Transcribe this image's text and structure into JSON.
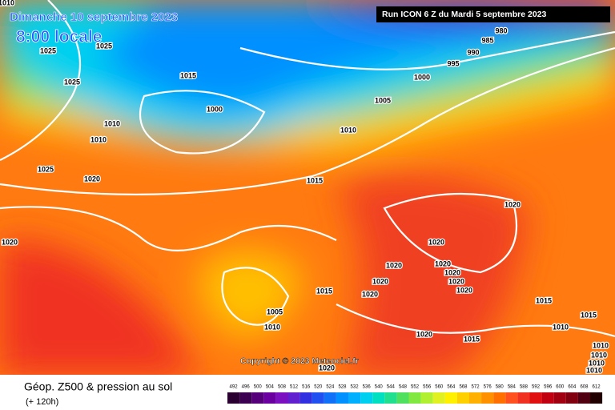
{
  "header": {
    "date": "Dimanche 10 septembre 2023",
    "time": "8:00 locale",
    "run": "Run ICON 6 Z du Mardi 5 septembre 2023",
    "copyright": "Copyright © 2023 Meteociel.fr"
  },
  "footer": {
    "title": "Géop. Z500 & pression au sol",
    "lead": "(+ 120h)"
  },
  "isobar_labels": [
    1010,
    1025,
    1025,
    1015,
    1025,
    1000,
    1010,
    1010,
    1025,
    1020,
    1015,
    1010,
    1005,
    1000,
    995,
    990,
    985,
    980,
    1020,
    1020,
    1020,
    1020,
    1020,
    1020,
    1020,
    1020,
    1020,
    1015,
    1005,
    1010,
    1015,
    1015,
    1010,
    1015,
    1020,
    1020,
    1010,
    1010,
    1010,
    1010,
    1020
  ],
  "scale": {
    "values": [
      492,
      496,
      500,
      504,
      508,
      512,
      516,
      520,
      524,
      528,
      532,
      536,
      540,
      544,
      548,
      552,
      556,
      560,
      564,
      568,
      572,
      576,
      580,
      584,
      588,
      592,
      596,
      600,
      604,
      608,
      612
    ],
    "colors": [
      "#2a0030",
      "#3c0050",
      "#55007a",
      "#6a00a0",
      "#7a10c0",
      "#6020d0",
      "#3030e0",
      "#2050f0",
      "#1070f8",
      "#0090ff",
      "#00b0ff",
      "#00d0f0",
      "#00e0c0",
      "#20e090",
      "#50e060",
      "#80e840",
      "#b0f030",
      "#e0f020",
      "#fff000",
      "#ffd000",
      "#ffb000",
      "#ff9000",
      "#ff7000",
      "#ff5020",
      "#f03020",
      "#e01010",
      "#c00010",
      "#a00010",
      "#800010",
      "#500010",
      "#200000"
    ]
  }
}
